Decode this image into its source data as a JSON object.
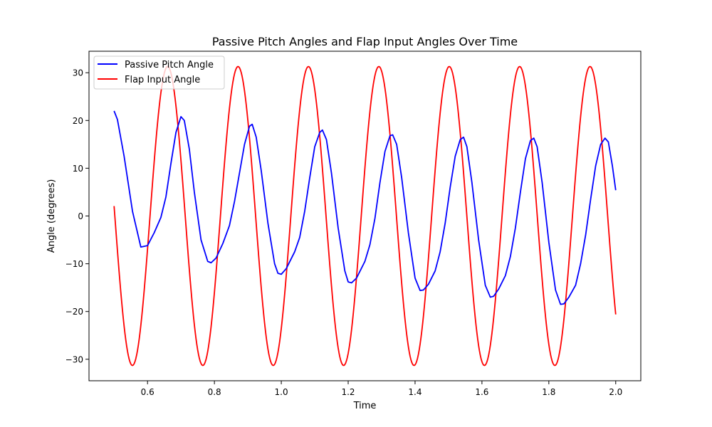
{
  "chart_data": {
    "type": "line",
    "title": "Passive Pitch Angles and Flap Input Angles Over Time",
    "xlabel": "Time",
    "ylabel": "Angle (degrees)",
    "xlim": [
      0.425,
      2.075
    ],
    "ylim": [
      -34.5,
      34.5
    ],
    "xticks": [
      0.6,
      0.8,
      1.0,
      1.2,
      1.4,
      1.6,
      1.8,
      2.0
    ],
    "xtick_labels": [
      "0.6",
      "0.8",
      "1.0",
      "1.2",
      "1.4",
      "1.6",
      "1.8",
      "2.0"
    ],
    "yticks": [
      -30,
      -20,
      -10,
      0,
      10,
      20,
      30
    ],
    "ytick_labels": [
      "−30",
      "−20",
      "−10",
      "0",
      "10",
      "20",
      "30"
    ],
    "grid": false,
    "legend_position": "upper left",
    "series": [
      {
        "name": "Passive Pitch Angle",
        "color": "#0000ff",
        "points": [
          [
            0.5,
            22.0
          ],
          [
            0.51,
            20.2
          ],
          [
            0.53,
            12.5
          ],
          [
            0.555,
            1.0
          ],
          [
            0.58,
            -6.5
          ],
          [
            0.6,
            -6.2
          ],
          [
            0.62,
            -3.5
          ],
          [
            0.64,
            -0.3
          ],
          [
            0.655,
            4.0
          ],
          [
            0.67,
            11.0
          ],
          [
            0.685,
            17.5
          ],
          [
            0.7,
            20.8
          ],
          [
            0.71,
            20.0
          ],
          [
            0.725,
            14.0
          ],
          [
            0.74,
            5.0
          ],
          [
            0.76,
            -5.0
          ],
          [
            0.78,
            -9.5
          ],
          [
            0.79,
            -9.8
          ],
          [
            0.805,
            -8.8
          ],
          [
            0.825,
            -5.8
          ],
          [
            0.845,
            -2.0
          ],
          [
            0.86,
            3.0
          ],
          [
            0.875,
            9.0
          ],
          [
            0.89,
            15.0
          ],
          [
            0.905,
            18.8
          ],
          [
            0.913,
            19.2
          ],
          [
            0.925,
            16.5
          ],
          [
            0.94,
            9.5
          ],
          [
            0.96,
            -1.5
          ],
          [
            0.98,
            -10.0
          ],
          [
            0.99,
            -12.0
          ],
          [
            1.0,
            -12.2
          ],
          [
            1.015,
            -11.0
          ],
          [
            1.04,
            -7.5
          ],
          [
            1.055,
            -4.5
          ],
          [
            1.07,
            1.0
          ],
          [
            1.085,
            8.0
          ],
          [
            1.1,
            14.5
          ],
          [
            1.115,
            17.5
          ],
          [
            1.123,
            18.0
          ],
          [
            1.135,
            16.0
          ],
          [
            1.15,
            9.0
          ],
          [
            1.17,
            -2.5
          ],
          [
            1.19,
            -11.5
          ],
          [
            1.2,
            -13.8
          ],
          [
            1.21,
            -14.0
          ],
          [
            1.225,
            -13.0
          ],
          [
            1.25,
            -9.5
          ],
          [
            1.265,
            -6.0
          ],
          [
            1.28,
            -0.5
          ],
          [
            1.295,
            7.0
          ],
          [
            1.31,
            13.5
          ],
          [
            1.325,
            16.8
          ],
          [
            1.333,
            17.0
          ],
          [
            1.345,
            15.0
          ],
          [
            1.36,
            8.0
          ],
          [
            1.38,
            -3.5
          ],
          [
            1.4,
            -13.0
          ],
          [
            1.415,
            -15.6
          ],
          [
            1.425,
            -15.5
          ],
          [
            1.44,
            -14.3
          ],
          [
            1.46,
            -11.5
          ],
          [
            1.475,
            -7.5
          ],
          [
            1.49,
            -1.5
          ],
          [
            1.505,
            6.0
          ],
          [
            1.52,
            12.5
          ],
          [
            1.535,
            16.0
          ],
          [
            1.545,
            16.5
          ],
          [
            1.555,
            14.5
          ],
          [
            1.57,
            7.0
          ],
          [
            1.59,
            -5.0
          ],
          [
            1.61,
            -14.5
          ],
          [
            1.625,
            -17.0
          ],
          [
            1.635,
            -16.8
          ],
          [
            1.65,
            -15.3
          ],
          [
            1.67,
            -12.5
          ],
          [
            1.685,
            -8.5
          ],
          [
            1.7,
            -2.5
          ],
          [
            1.715,
            5.0
          ],
          [
            1.73,
            12.0
          ],
          [
            1.745,
            15.8
          ],
          [
            1.755,
            16.3
          ],
          [
            1.765,
            14.5
          ],
          [
            1.78,
            7.0
          ],
          [
            1.8,
            -5.5
          ],
          [
            1.82,
            -15.5
          ],
          [
            1.835,
            -18.5
          ],
          [
            1.845,
            -18.4
          ],
          [
            1.86,
            -17.0
          ],
          [
            1.88,
            -14.5
          ],
          [
            1.895,
            -10.0
          ],
          [
            1.91,
            -4.0
          ],
          [
            1.925,
            3.5
          ],
          [
            1.94,
            10.5
          ],
          [
            1.955,
            15.0
          ],
          [
            1.968,
            16.3
          ],
          [
            1.978,
            15.5
          ],
          [
            1.99,
            10.5
          ],
          [
            2.0,
            5.4
          ]
        ]
      },
      {
        "name": "Flap Input Angle",
        "color": "#ff0000",
        "points": []
      }
    ],
    "flap_model": {
      "amplitude": 31.3,
      "frequency": 4.75,
      "phase_deg": 41.2
    }
  }
}
